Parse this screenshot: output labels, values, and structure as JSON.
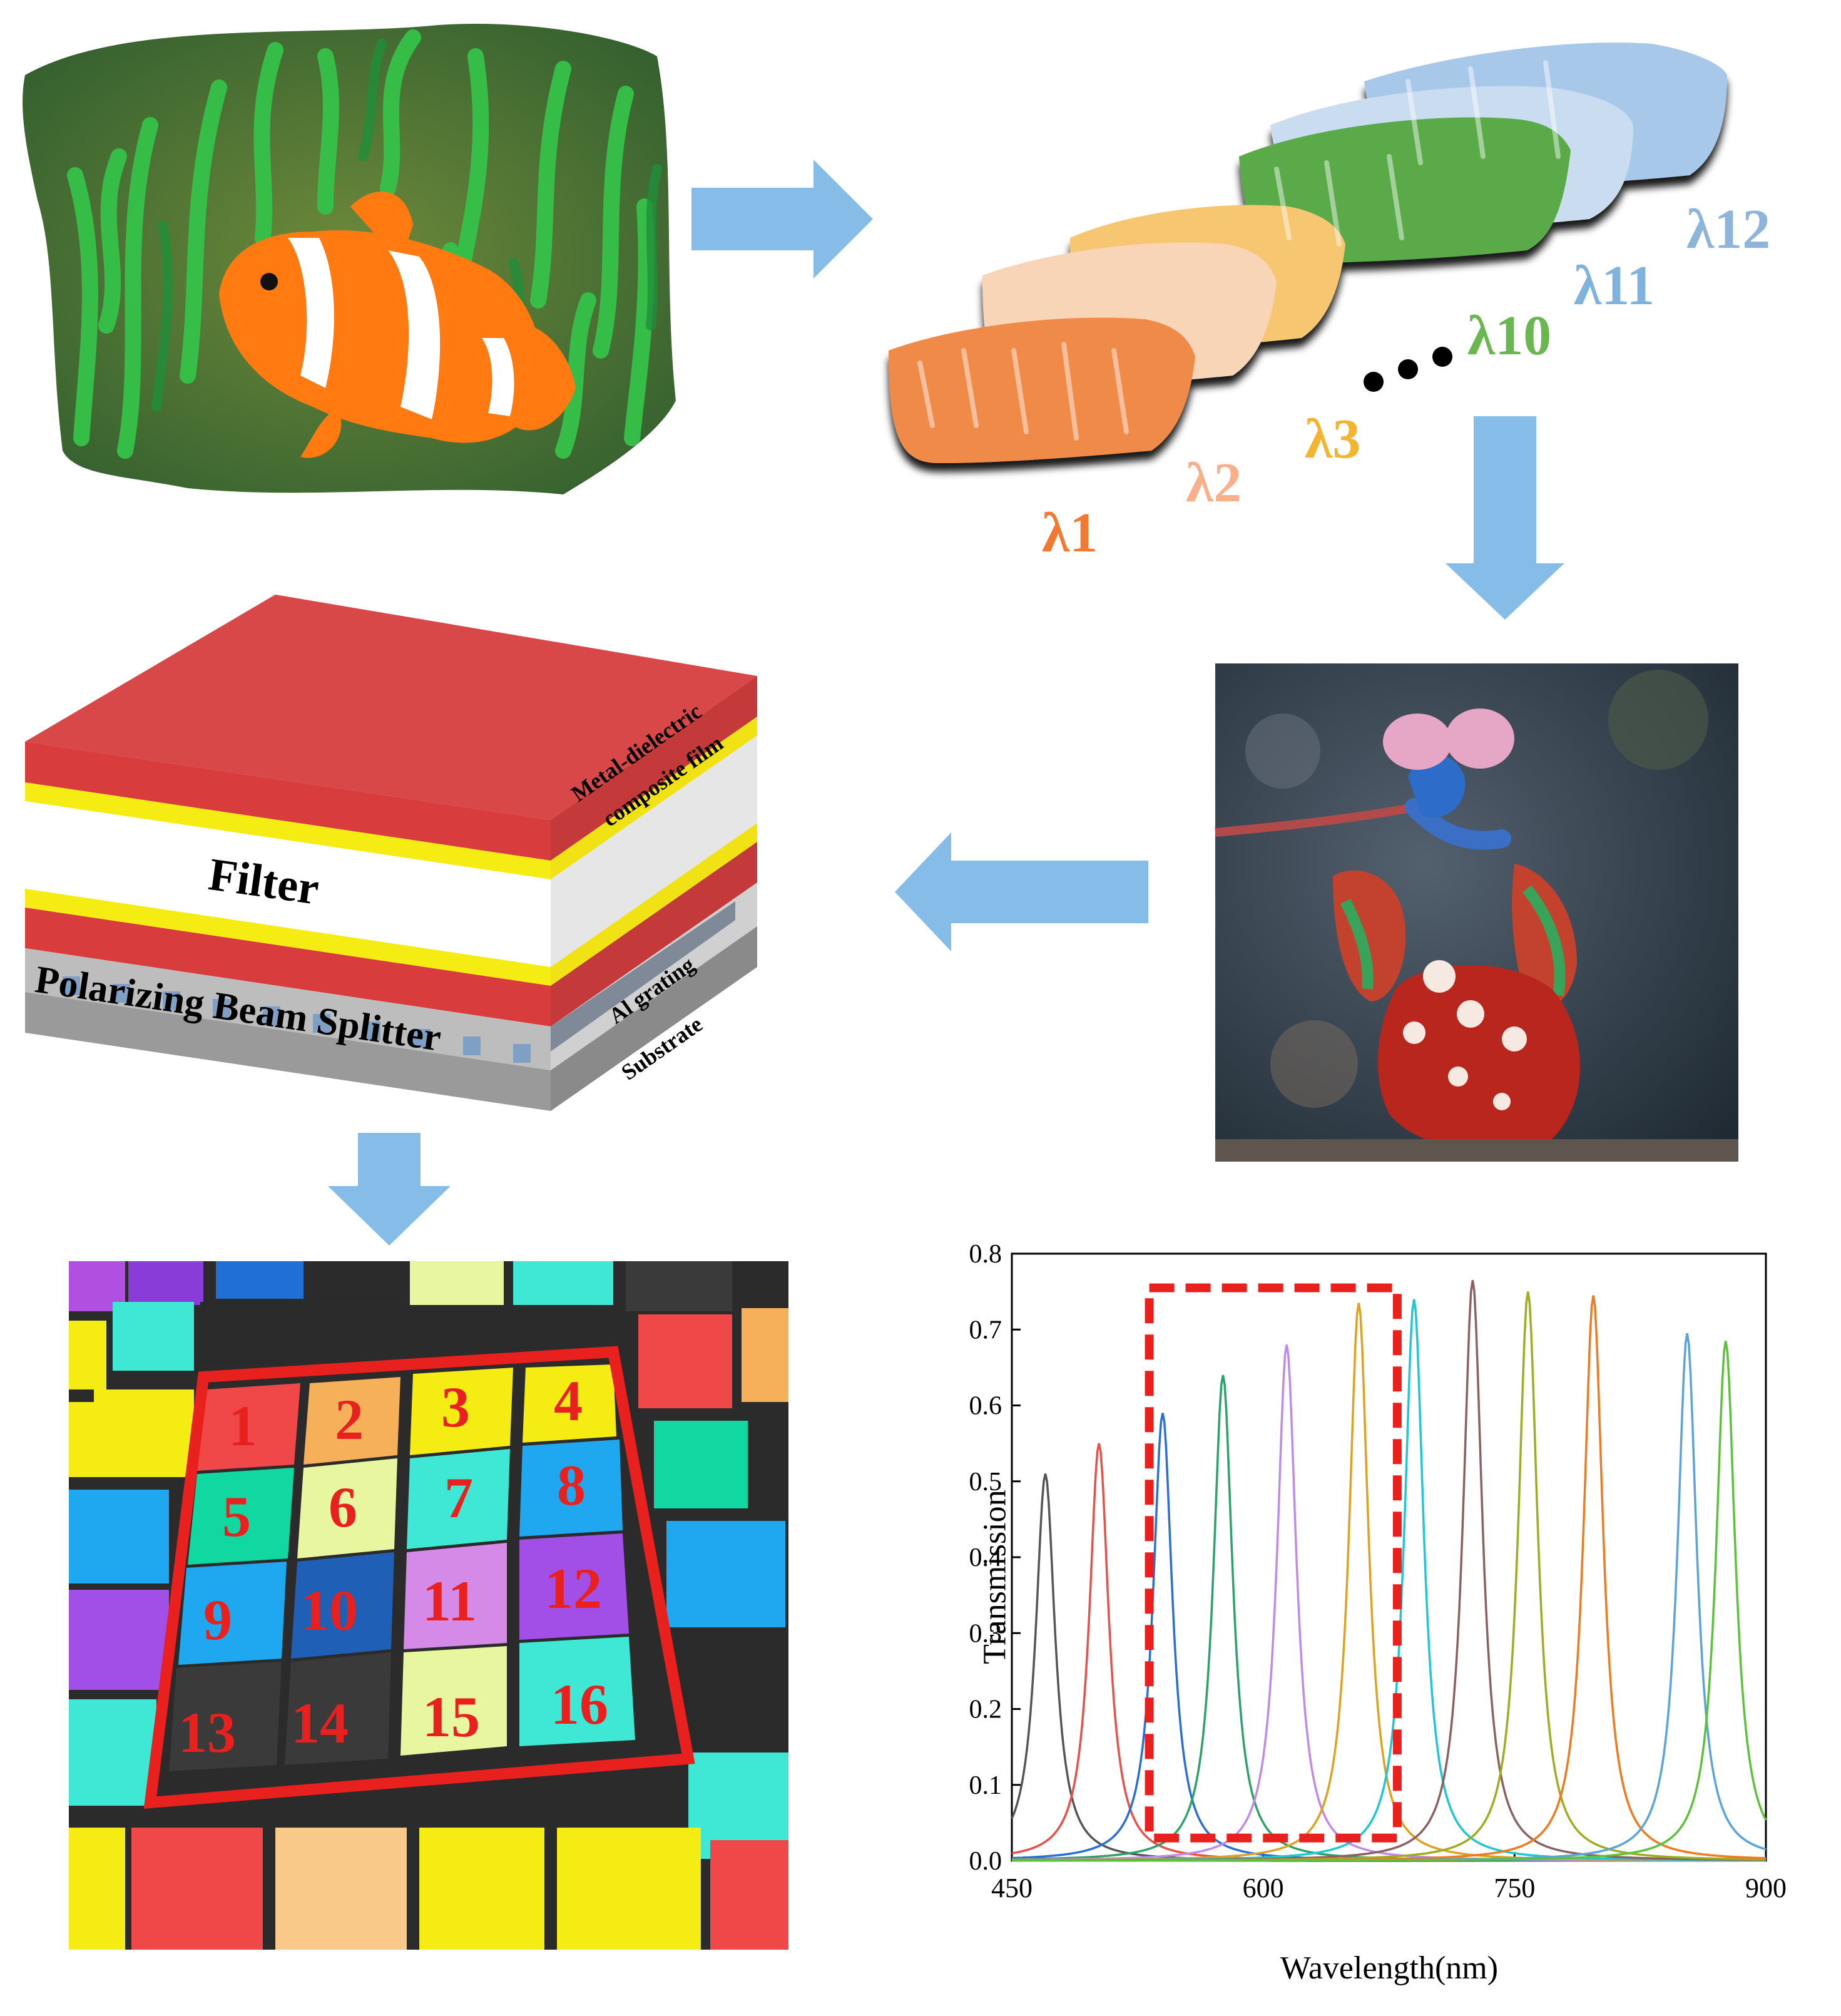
{
  "top_left": {
    "caption_none": ""
  },
  "wavelength_labels": [
    {
      "text": "λ1",
      "color": "#f07a32"
    },
    {
      "text": "λ2",
      "color": "#f8b08a"
    },
    {
      "text": "λ3",
      "color": "#f3b432"
    },
    {
      "text": "λ10",
      "color": "#6ab752"
    },
    {
      "text": "λ11",
      "color": "#7fb3dc"
    },
    {
      "text": "λ12",
      "color": "#8fb4da"
    }
  ],
  "stack": {
    "filter_label": "Filter",
    "pbs_label": "Polarizing Beam Splitter",
    "side_labels": {
      "metal_line1": "Metal-dielectric",
      "metal_line2": "composite film",
      "grating": "Al grating",
      "substrate": "Substrate"
    },
    "colors": {
      "red": "#d94848",
      "yellow": "#f5ec14",
      "white": "#ffffff",
      "grey": "#a0a0a0",
      "dark": "#686868",
      "blue": "#7f9fc4"
    }
  },
  "mosaic": {
    "cells": [
      "1",
      "2",
      "3",
      "4",
      "5",
      "6",
      "7",
      "8",
      "9",
      "10",
      "11",
      "12",
      "13",
      "14",
      "15",
      "16"
    ]
  },
  "chart_data": {
    "type": "line",
    "xlabel": "Wavelength(nm)",
    "ylabel": "Transmission",
    "xlim": [
      450,
      900
    ],
    "ylim": [
      0,
      0.8
    ],
    "x_ticks": [
      "450",
      "600",
      "750",
      "900"
    ],
    "y_ticks": [
      "0.0",
      "0.1",
      "0.2",
      "0.3",
      "0.4",
      "0.5",
      "0.6",
      "0.7",
      "0.8"
    ],
    "series": [
      {
        "peak": 470,
        "max": 0.51,
        "color": "#555555"
      },
      {
        "peak": 502,
        "max": 0.55,
        "color": "#e8504a"
      },
      {
        "peak": 540,
        "max": 0.59,
        "color": "#2b6fd6"
      },
      {
        "peak": 576,
        "max": 0.64,
        "color": "#2aa26a"
      },
      {
        "peak": 614,
        "max": 0.68,
        "color": "#c08ae8"
      },
      {
        "peak": 657,
        "max": 0.735,
        "color": "#e0a020"
      },
      {
        "peak": 690,
        "max": 0.74,
        "color": "#1fc7d4"
      },
      {
        "peak": 725,
        "max": 0.765,
        "color": "#8c6060"
      },
      {
        "peak": 758,
        "max": 0.75,
        "color": "#9cae20"
      },
      {
        "peak": 797,
        "max": 0.745,
        "color": "#f07a20"
      },
      {
        "peak": 853,
        "max": 0.695,
        "color": "#5ba3db"
      },
      {
        "peak": 876,
        "max": 0.685,
        "color": "#5cc23a"
      }
    ],
    "highlight_box_x": [
      532,
      680
    ],
    "highlight_box_y": [
      0.03,
      0.755
    ]
  }
}
